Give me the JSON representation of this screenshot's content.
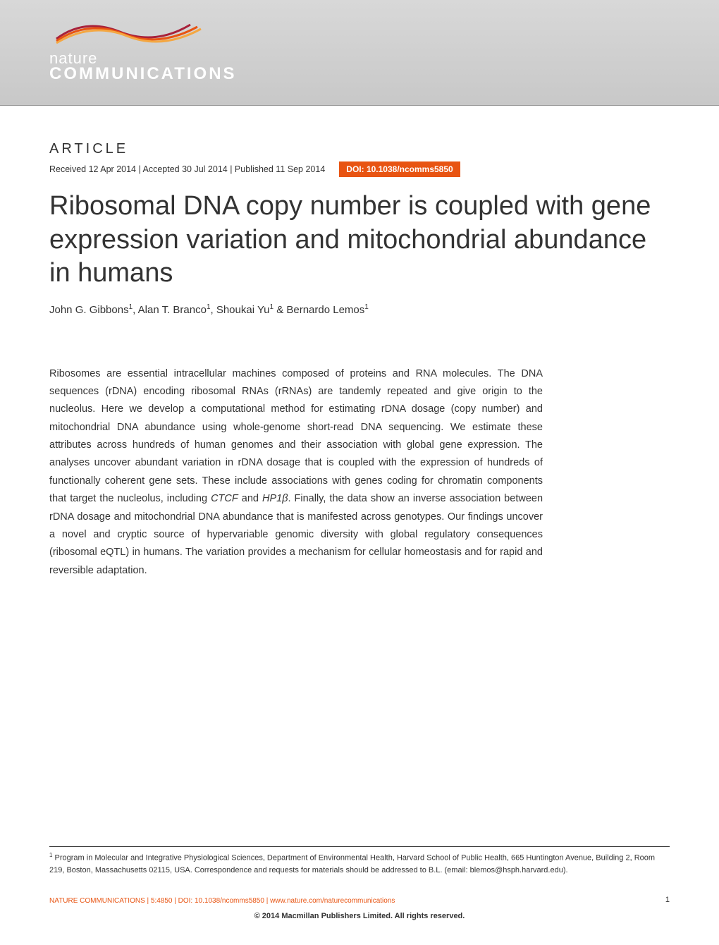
{
  "header": {
    "logo_line1": "nature",
    "logo_line2": "COMMUNICATIONS",
    "banner_bg_top": "#d8d8d8",
    "banner_bg_bottom": "#c8c8c8",
    "swoosh_colors": [
      "#a8213a",
      "#e85412",
      "#f4a742"
    ]
  },
  "article": {
    "label": "ARTICLE",
    "dates": "Received 12 Apr 2014 | Accepted 30 Jul 2014 | Published 11 Sep 2014",
    "doi": "DOI: 10.1038/ncomms5850",
    "doi_bg_color": "#e85412",
    "title": "Ribosomal DNA copy number is coupled with gene expression variation and mitochondrial abundance in humans",
    "title_fontsize": 38,
    "title_color": "#333333",
    "authors_html": "John G. Gibbons<sup>1</sup>, Alan T. Branco<sup>1</sup>, Shoukai Yu<sup>1</sup> & Bernardo Lemos<sup>1</sup>"
  },
  "abstract": {
    "text_parts": [
      "Ribosomes are essential intracellular machines composed of proteins and RNA molecules. The DNA sequences (rDNA) encoding ribosomal RNAs (rRNAs) are tandemly repeated and give origin to the nucleolus. Here we develop a computational method for estimating rDNA dosage (copy number) and mitochondrial DNA abundance using whole-genome short-read DNA sequencing. We estimate these attributes across hundreds of human genomes and their association with global gene expression. The analyses uncover abundant variation in rDNA dosage that is coupled with the expression of hundreds of functionally coherent gene sets. These include associations with genes coding for chromatin components that target the nucleolus, including ",
      "CTCF",
      " and ",
      "HP1β",
      ". Finally, the data show an inverse association between rDNA dosage and mitochondrial DNA abundance that is manifested across genotypes. Our findings uncover a novel and cryptic source of hypervariable genomic diversity with global regulatory consequences (ribosomal eQTL) in humans. The variation provides a mechanism for cellular homeostasis and for rapid and reversible adaptation."
    ],
    "fontsize": 14.5,
    "line_height": 1.75
  },
  "affiliation": {
    "text_html": "<sup>1</sup> Program in Molecular and Integrative Physiological Sciences, Department of Environmental Health, Harvard School of Public Health, 665 Huntington Avenue, Building 2, Room 219, Boston, Massachusetts 02115, USA. Correspondence and requests for materials should be addressed to B.L. (email: blemos@hsph.harvard.edu)."
  },
  "footer": {
    "citation_orange": "NATURE COMMUNICATIONS",
    "citation_black": " | 5:4850 | DOI: 10.1038/ncomms5850 | www.nature.com/naturecommunications",
    "page_number": "1",
    "copyright": "© 2014 Macmillan Publishers Limited. All rights reserved."
  },
  "colors": {
    "accent_orange": "#e85412",
    "text_dark": "#333333",
    "background": "#ffffff"
  }
}
